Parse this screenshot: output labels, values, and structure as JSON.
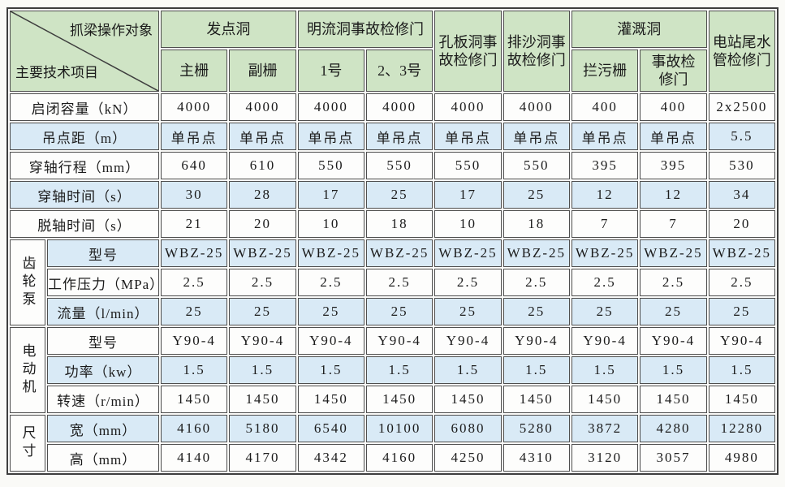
{
  "table": {
    "corner": {
      "top_right": "抓梁操作对象",
      "bottom_left": "主要技术项目"
    },
    "column_groups": [
      {
        "label": "发点洞",
        "children": [
          "主栅",
          "副栅"
        ]
      },
      {
        "label": "明流洞事故检修门",
        "children": [
          "1号",
          "2、3号"
        ]
      },
      {
        "label": "孔板洞事故检修门",
        "children": []
      },
      {
        "label": "排沙洞事故检修门",
        "children": []
      },
      {
        "label": "灌溉洞",
        "children": [
          "拦污栅",
          "事故检修门"
        ]
      },
      {
        "label": "电站尾水管检修门",
        "children": []
      }
    ],
    "row_groups": [
      {
        "label": "",
        "rows": [
          {
            "label": "启闭容量（kN）",
            "values": [
              "4000",
              "4000",
              "4000",
              "4000",
              "4000",
              "4000",
              "400",
              "400",
              "2x2500"
            ]
          },
          {
            "label": "吊点距（m）",
            "values": [
              "单吊点",
              "单吊点",
              "单吊点",
              "单吊点",
              "单吊点",
              "单吊点",
              "单吊点",
              "单吊点",
              "5.5"
            ]
          },
          {
            "label": "穿轴行程（mm）",
            "values": [
              "640",
              "610",
              "550",
              "550",
              "550",
              "550",
              "395",
              "395",
              "530"
            ]
          },
          {
            "label": "穿轴时间（s）",
            "values": [
              "30",
              "28",
              "17",
              "25",
              "17",
              "25",
              "12",
              "12",
              "34"
            ]
          },
          {
            "label": "脱轴时间（s）",
            "values": [
              "21",
              "20",
              "10",
              "18",
              "10",
              "18",
              "7",
              "7",
              "20"
            ]
          }
        ]
      },
      {
        "label": "齿轮泵",
        "rows": [
          {
            "label": "型号",
            "values": [
              "WBZ-25",
              "WBZ-25",
              "WBZ-25",
              "WBZ-25",
              "WBZ-25",
              "WBZ-25",
              "WBZ-25",
              "WBZ-25",
              "WBZ-25"
            ]
          },
          {
            "label": "工作压力（MPa）",
            "values": [
              "2.5",
              "2.5",
              "2.5",
              "2.5",
              "2.5",
              "2.5",
              "2.5",
              "2.5",
              "2.5"
            ]
          },
          {
            "label": "流量（l/min）",
            "values": [
              "25",
              "25",
              "25",
              "25",
              "25",
              "25",
              "25",
              "25",
              "25"
            ]
          }
        ]
      },
      {
        "label": "电动机",
        "rows": [
          {
            "label": "型号",
            "values": [
              "Y90-4",
              "Y90-4",
              "Y90-4",
              "Y90-4",
              "Y90-4",
              "Y90-4",
              "Y90-4",
              "Y90-4",
              "Y90-4"
            ]
          },
          {
            "label": "功率（kw）",
            "values": [
              "1.5",
              "1.5",
              "1.5",
              "1.5",
              "1.5",
              "1.5",
              "1.5",
              "1.5",
              "1.5"
            ]
          },
          {
            "label": "转速（r/min）",
            "values": [
              "1450",
              "1450",
              "1450",
              "1450",
              "1450",
              "1450",
              "1450",
              "1450",
              "1450"
            ]
          }
        ]
      },
      {
        "label": "尺寸",
        "rows": [
          {
            "label": "宽（mm）",
            "values": [
              "4160",
              "5180",
              "6540",
              "10100",
              "6080",
              "5280",
              "3872",
              "4280",
              "12280"
            ]
          },
          {
            "label": "高（mm）",
            "values": [
              "4140",
              "4170",
              "4342",
              "4160",
              "4250",
              "4310",
              "3120",
              "3057",
              "4980"
            ]
          }
        ]
      }
    ]
  },
  "colors": {
    "header_green": "#cfe4c5",
    "row_blue": "#d9eaf6",
    "row_white": "#fdfdfc",
    "border": "#4e4e4e",
    "marker_blue": "#8cc3e0"
  }
}
